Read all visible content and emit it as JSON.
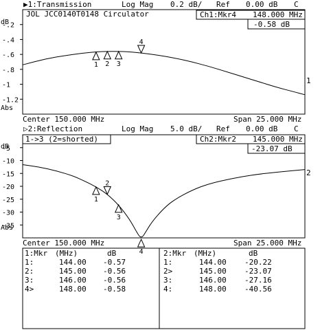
{
  "panels": [
    {
      "id": "ch1",
      "header_left": "▶1:Transmission",
      "format": "Log Mag",
      "scale": "0.2 dB/",
      "ref": "Ref",
      "ref_value": "0.00 dB",
      "ref_flag": "C",
      "device_title": "JOL  JCC0140T0148 Circulator",
      "marker_head": "Ch1:Mkr4",
      "marker_freq": "148.000 MHz",
      "marker_val": "-0.58 dB",
      "y_unit": "dB",
      "y_bottom_label": "Abs",
      "trace_label": "1",
      "center": "Center 150.000 MHz",
      "span": "Span 25.000 MHz"
    },
    {
      "id": "ch2",
      "header_left": "▷2:Reflection",
      "format": "Log Mag",
      "scale": "5.0 dB/",
      "ref": "Ref",
      "ref_value": "0.00 dB",
      "ref_flag": "C",
      "device_title": "1->3 (2=shorted)",
      "marker_head": "Ch2:Mkr2",
      "marker_freq": "145.000 MHz",
      "marker_val": "-23.07 dB",
      "y_unit": "dB",
      "y_bottom_label": "Abs",
      "trace_label": "2",
      "center": "Center 150.000 MHz",
      "span": "Span 25.000 MHz"
    }
  ],
  "marker_tables": [
    {
      "header": [
        "1:Mkr",
        "(MHz)",
        "dB"
      ],
      "rows": [
        [
          "1:",
          "144.00",
          "-0.57"
        ],
        [
          "2:",
          "145.00",
          "-0.56"
        ],
        [
          "3:",
          "146.00",
          "-0.56"
        ],
        [
          "4>",
          "148.00",
          "-0.58"
        ]
      ]
    },
    {
      "header": [
        "2:Mkr",
        "(MHz)",
        "dB"
      ],
      "rows": [
        [
          "1:",
          "144.00",
          "-20.22"
        ],
        [
          "2>",
          "145.00",
          "-23.07"
        ],
        [
          "3:",
          "146.00",
          "-27.16"
        ],
        [
          "4:",
          "148.00",
          "-40.56"
        ]
      ]
    }
  ],
  "chart_data": [
    {
      "type": "line",
      "title": "1:Transmission",
      "xlabel": "Center 150.000 MHz / Span 25.000 MHz",
      "ylabel": "dB",
      "xlim": [
        137.5,
        162.5
      ],
      "ylim": [
        -1.4,
        0.0
      ],
      "yticks": [
        -0.2,
        -0.4,
        -0.6,
        -0.8,
        -1.0,
        -1.2
      ],
      "ytick_labels": [
        "-.2",
        "-.4",
        "-.6",
        "-.8",
        "-1",
        "-1.2"
      ],
      "grid": false,
      "series": [
        {
          "name": "1",
          "x": [
            137.5,
            139.5,
            141.5,
            143.0,
            144.5,
            146.5,
            148.0,
            149.5,
            151.0,
            152.5,
            154.0,
            155.5,
            157.0,
            158.5,
            160.0,
            161.5,
            162.5
          ],
          "y": [
            -0.74,
            -0.66,
            -0.61,
            -0.58,
            -0.56,
            -0.56,
            -0.58,
            -0.61,
            -0.65,
            -0.7,
            -0.76,
            -0.83,
            -0.9,
            -0.97,
            -1.04,
            -1.1,
            -1.14
          ]
        }
      ],
      "markers": [
        {
          "label": "1",
          "x": 144.0,
          "y": -0.57
        },
        {
          "label": "2",
          "x": 145.0,
          "y": -0.56
        },
        {
          "label": "3",
          "x": 146.0,
          "y": -0.56
        },
        {
          "label": "4",
          "x": 148.0,
          "y": -0.58
        }
      ]
    },
    {
      "type": "line",
      "title": "2:Reflection",
      "xlabel": "Center 150.000 MHz / Span 25.000 MHz",
      "ylabel": "dB",
      "xlim": [
        137.5,
        162.5
      ],
      "ylim": [
        -40.0,
        0.0
      ],
      "yticks": [
        -5,
        -10,
        -15,
        -20,
        -25,
        -30,
        -35
      ],
      "ytick_labels": [
        "-5",
        "-10",
        "-15",
        "-20",
        "-25",
        "-30",
        "-35"
      ],
      "grid": false,
      "series": [
        {
          "name": "2",
          "x": [
            137.5,
            139.0,
            140.5,
            142.0,
            143.0,
            144.0,
            145.0,
            146.0,
            147.0,
            147.5,
            148.0,
            148.5,
            149.0,
            150.0,
            151.0,
            152.5,
            154.0,
            156.0,
            158.0,
            160.0,
            162.5
          ],
          "y": [
            -11.6,
            -12.5,
            -14.0,
            -16.0,
            -18.0,
            -20.2,
            -23.07,
            -27.16,
            -33.0,
            -37.0,
            -40.56,
            -37.0,
            -33.5,
            -28.5,
            -25.0,
            -21.5,
            -19.0,
            -17.0,
            -15.5,
            -14.5,
            -13.5
          ]
        }
      ],
      "markers": [
        {
          "label": "1",
          "x": 144.0,
          "y": -20.22
        },
        {
          "label": "2",
          "x": 145.0,
          "y": -23.07
        },
        {
          "label": "3",
          "x": 146.0,
          "y": -27.16
        },
        {
          "label": "4",
          "x": 148.0,
          "y": -40.56
        }
      ]
    }
  ]
}
